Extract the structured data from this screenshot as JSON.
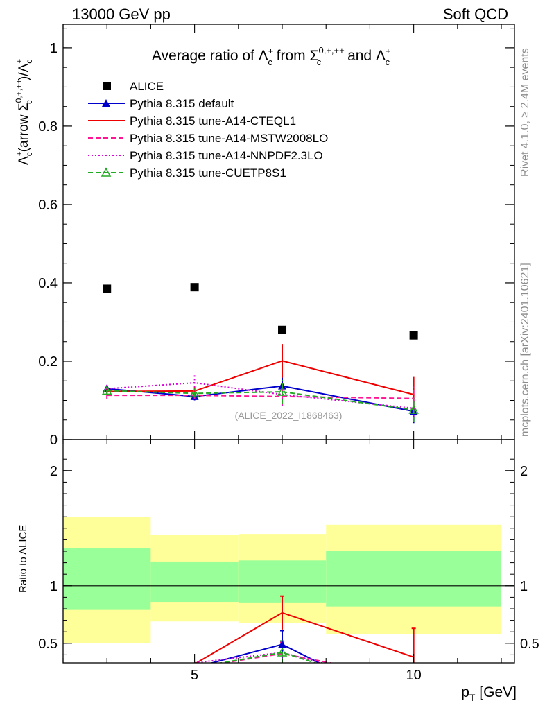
{
  "header": {
    "left": "13000 GeV pp",
    "right": "Soft QCD"
  },
  "side_texts": {
    "rivet": "Rivet 4.1.0, ≥ 2.4M events",
    "mcplots": "mcplots.cern.ch [arXiv:2401.10621]"
  },
  "chart_data": [
    {
      "type": "scatter",
      "title_prefix": "Average ratio of ",
      "title_from": " from ",
      "title_and": " and ",
      "title_lambda": "Λ",
      "title_sigma": "Σ",
      "sub_c": "c",
      "sup_plus": "+",
      "sup_sigma": "0,+,++",
      "ylabel_paren": "(arrow ",
      "ylabel_close": ")/",
      "watermark": "(ALICE_2022_I1868463)",
      "x_range": [
        2,
        12.3
      ],
      "y_range": [
        0,
        1.06
      ],
      "y_ticks": [
        0,
        0.2,
        0.4,
        0.6,
        0.8,
        1
      ],
      "y_tick_labels": [
        "0",
        "0.2",
        "0.4",
        "0.6",
        "0.8",
        "1"
      ],
      "data": {
        "name": "ALICE",
        "x": [
          3,
          5,
          7,
          10
        ],
        "y": [
          0.385,
          0.389,
          0.28,
          0.266
        ]
      },
      "series": [
        {
          "name": "Pythia 8.315 default",
          "color": "#0000cc",
          "style": "solid",
          "marker": "triangle",
          "x": [
            3,
            5,
            7,
            10
          ],
          "y": [
            0.13,
            0.11,
            0.137,
            0.072
          ],
          "err": [
            0.01,
            0.01,
            0.03,
            0.03
          ]
        },
        {
          "name": "Pythia 8.315 tune-A14-CTEQL1",
          "color": "#ee0000",
          "style": "solid",
          "marker": "none",
          "x": [
            3,
            5,
            7,
            10
          ],
          "y": [
            0.123,
            0.124,
            0.201,
            0.115
          ],
          "err": [
            0.01,
            0.01,
            0.043,
            0.045
          ]
        },
        {
          "name": "Pythia 8.315 tune-A14-MSTW2008LO",
          "color": "#ff1493",
          "style": "dashed",
          "marker": "none",
          "x": [
            3,
            5,
            7,
            10
          ],
          "y": [
            0.113,
            0.113,
            0.11,
            0.105
          ],
          "err": [
            0.01,
            0.01,
            0.025,
            0.03
          ]
        },
        {
          "name": "Pythia 8.315 tune-A14-NNPDF2.3LO",
          "color": "#dd00dd",
          "style": "dotted",
          "marker": "none",
          "x": [
            3,
            5,
            7,
            10
          ],
          "y": [
            0.13,
            0.145,
            0.115,
            0.08
          ],
          "err": [
            0.01,
            0.02,
            0.03,
            0.03
          ]
        },
        {
          "name": "Pythia 8.315 tune-CUETP8S1",
          "color": "#22aa22",
          "style": "dashed",
          "marker": "open-triangle",
          "x": [
            3,
            5,
            7,
            10
          ],
          "y": [
            0.125,
            0.118,
            0.122,
            0.076
          ],
          "err": [
            0.01,
            0.01,
            0.03,
            0.03
          ]
        }
      ]
    },
    {
      "type": "line",
      "ylabel": "Ratio to ALICE",
      "xlabel_main": "p",
      "xlabel_sub": "T",
      "xlabel_unit": " [GeV]",
      "x_range": [
        2,
        12.3
      ],
      "y_range": [
        0.33,
        2.27
      ],
      "y_ticks": [
        0.5,
        1,
        2
      ],
      "y_tick_labels": [
        "0.5",
        "1",
        "2"
      ],
      "x_ticks": [
        5,
        10
      ],
      "x_tick_labels": [
        "5",
        "10"
      ],
      "bands": {
        "edges": [
          2,
          4,
          6,
          8,
          12
        ],
        "yellow_low": [
          0.5,
          0.69,
          0.675,
          0.58
        ],
        "yellow_high": [
          1.6,
          1.44,
          1.45,
          1.53
        ],
        "green_low": [
          0.79,
          0.86,
          0.855,
          0.82
        ],
        "green_high": [
          1.33,
          1.21,
          1.22,
          1.3
        ]
      },
      "series": [
        {
          "name": "Pythia 8.315 default",
          "color": "#0000cc",
          "style": "solid",
          "x": [
            5,
            7,
            8
          ],
          "y": [
            0.29,
            0.49,
            0.3
          ],
          "err": [
            null,
            0.12,
            null
          ]
        },
        {
          "name": "Pythia 8.315 tune-A14-CTEQL1",
          "color": "#ee0000",
          "style": "solid",
          "x": [
            5,
            7,
            10
          ],
          "y": [
            0.32,
            0.765,
            0.38
          ],
          "err": [
            null,
            0.145,
            0.25
          ]
        },
        {
          "name": "Pythia 8.315 tune-A14-MSTW2008LO",
          "color": "#ff1493",
          "style": "dashed",
          "x": [
            5,
            7,
            8.5
          ],
          "y": [
            0.29,
            0.41,
            0.3
          ],
          "err": [
            null,
            0.1,
            null
          ]
        },
        {
          "name": "Pythia 8.315 tune-A14-NNPDF2.3LO",
          "color": "#dd00dd",
          "style": "dotted",
          "x": [
            5,
            7,
            8
          ],
          "y": [
            0.33,
            0.42,
            0.32
          ],
          "err": [
            null,
            0.1,
            null
          ]
        },
        {
          "name": "Pythia 8.315 tune-CUETP8S1",
          "color": "#22aa22",
          "style": "dashed",
          "x": [
            5,
            7,
            8
          ],
          "y": [
            0.29,
            0.42,
            0.3
          ],
          "err": [
            null,
            0.1,
            null
          ]
        }
      ]
    }
  ]
}
